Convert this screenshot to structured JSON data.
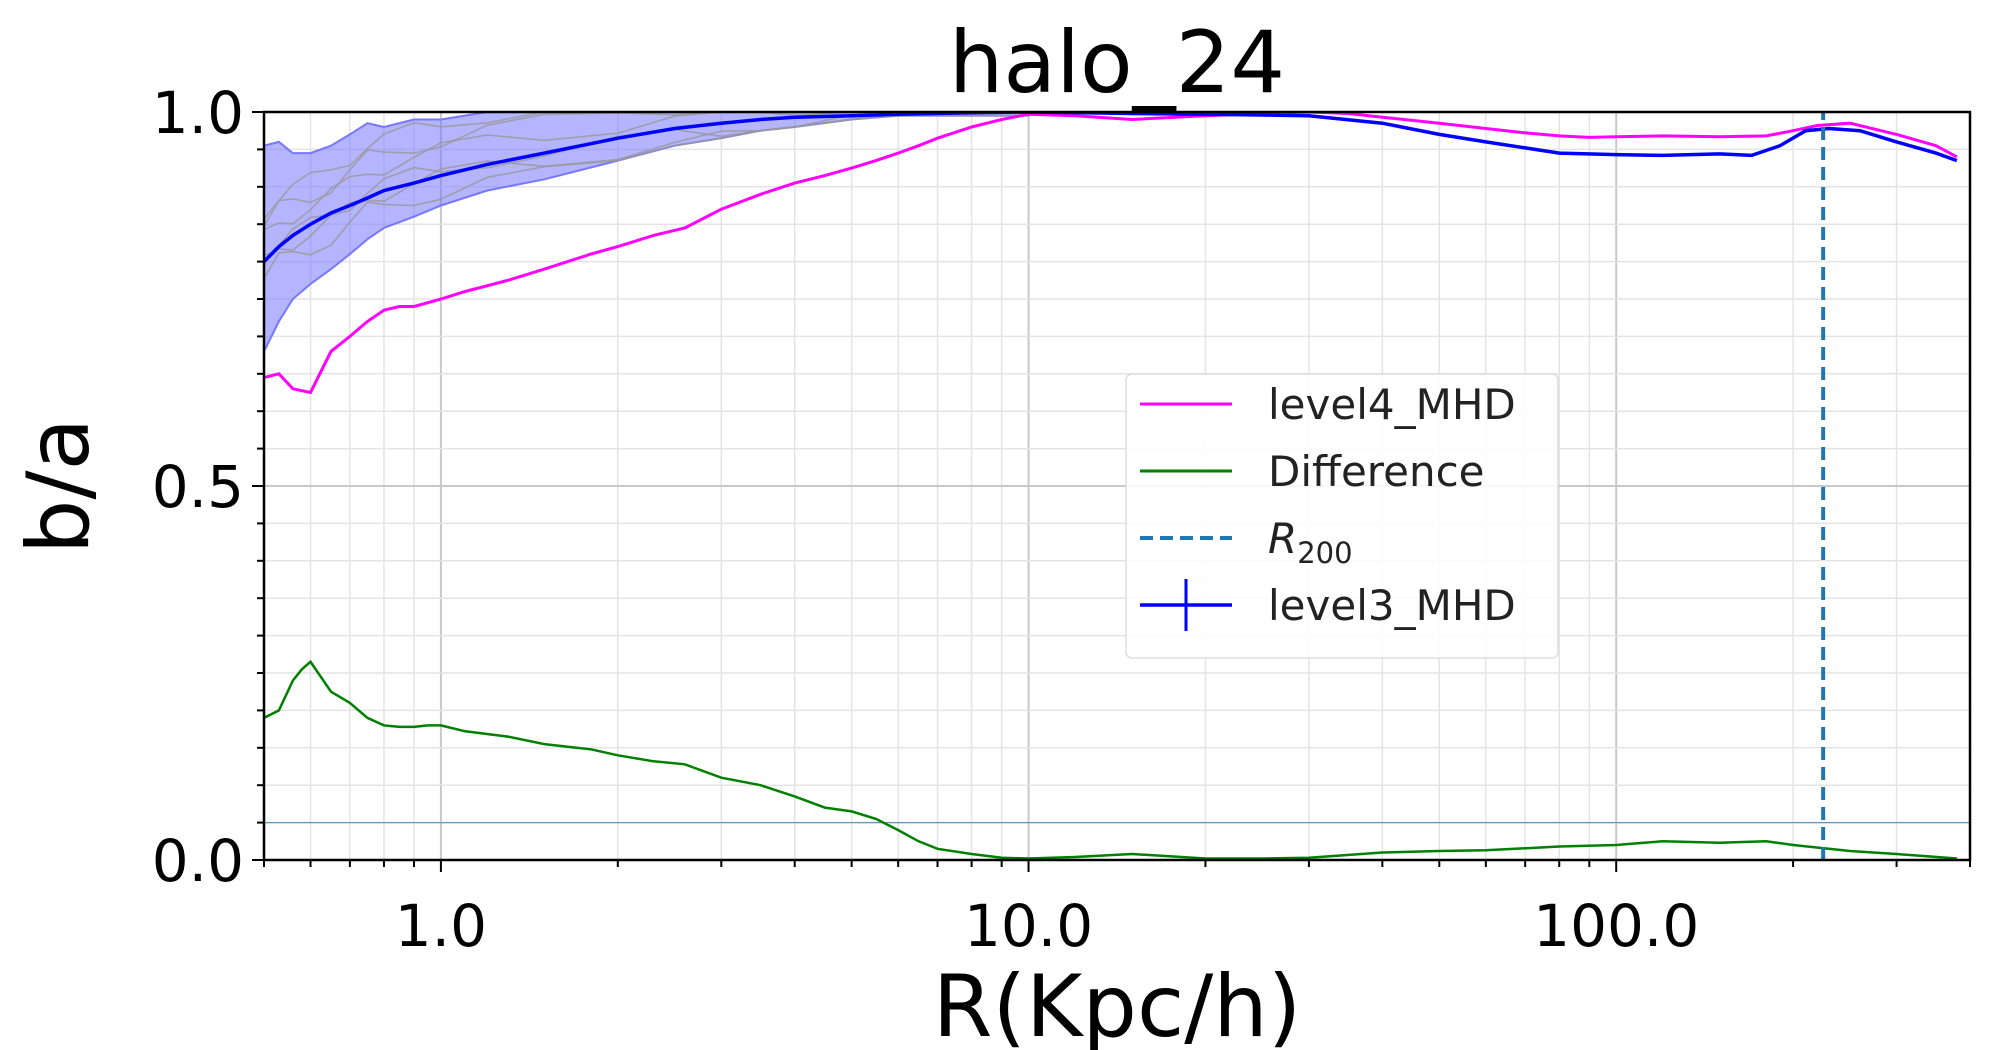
{
  "chart_data": {
    "type": "line",
    "title": "halo_24",
    "xlabel": "R(Kpc/h)",
    "ylabel": "b/a",
    "xscale": "log",
    "xlim": [
      0.5,
      400
    ],
    "ylim": [
      0.0,
      1.0
    ],
    "xticks": [
      1.0,
      10.0,
      100.0
    ],
    "xtick_labels": [
      "1.0",
      "10.0",
      "100.0"
    ],
    "yticks": [
      0.0,
      0.5,
      1.0
    ],
    "ytick_labels": [
      "0.0",
      "0.5",
      "1.0"
    ],
    "grid": true,
    "legend_position": "center-right",
    "reference_line_y": 0.05,
    "colors": {
      "level4": "#ff00ff",
      "difference": "#008000",
      "r200": "#1f77b4",
      "level3": "#0000ff",
      "band": "#7777ff",
      "thin": "#999999"
    },
    "series": [
      {
        "name": "level4_MHD",
        "x": [
          0.5,
          0.53,
          0.56,
          0.6,
          0.65,
          0.7,
          0.75,
          0.8,
          0.85,
          0.9,
          0.95,
          1.0,
          1.1,
          1.3,
          1.5,
          1.8,
          2.0,
          2.3,
          2.6,
          3.0,
          3.5,
          4.0,
          4.5,
          5.0,
          5.5,
          6.0,
          6.5,
          7.0,
          8.0,
          9.0,
          10.0,
          12.0,
          15.0,
          20.0,
          25.0,
          30.0,
          35.0,
          40.0,
          50.0,
          60.0,
          70.0,
          80.0,
          90.0,
          100.0,
          120.0,
          150.0,
          180.0,
          200.0,
          220.0,
          250.0,
          300.0,
          350.0,
          380.0
        ],
        "y": [
          0.645,
          0.65,
          0.63,
          0.625,
          0.68,
          0.7,
          0.72,
          0.735,
          0.74,
          0.74,
          0.745,
          0.75,
          0.76,
          0.775,
          0.79,
          0.81,
          0.82,
          0.835,
          0.845,
          0.87,
          0.89,
          0.905,
          0.915,
          0.925,
          0.935,
          0.945,
          0.955,
          0.965,
          0.98,
          0.99,
          0.997,
          0.995,
          0.99,
          0.995,
          0.998,
          1.0,
          0.998,
          0.993,
          0.985,
          0.978,
          0.972,
          0.968,
          0.966,
          0.967,
          0.968,
          0.967,
          0.968,
          0.975,
          0.982,
          0.985,
          0.97,
          0.955,
          0.94
        ]
      },
      {
        "name": "Difference",
        "x": [
          0.5,
          0.53,
          0.56,
          0.58,
          0.6,
          0.65,
          0.7,
          0.75,
          0.8,
          0.85,
          0.9,
          0.95,
          1.0,
          1.1,
          1.3,
          1.5,
          1.7,
          1.8,
          2.0,
          2.3,
          2.6,
          3.0,
          3.5,
          4.0,
          4.5,
          5.0,
          5.5,
          6.0,
          6.5,
          7.0,
          8.0,
          9.0,
          10.0,
          12.0,
          15.0,
          20.0,
          25.0,
          30.0,
          40.0,
          50.0,
          60.0,
          80.0,
          100.0,
          120.0,
          150.0,
          180.0,
          200.0,
          250.0,
          300.0,
          380.0
        ],
        "y": [
          0.19,
          0.2,
          0.24,
          0.255,
          0.265,
          0.225,
          0.21,
          0.19,
          0.18,
          0.178,
          0.178,
          0.18,
          0.18,
          0.172,
          0.165,
          0.155,
          0.15,
          0.148,
          0.14,
          0.132,
          0.128,
          0.11,
          0.1,
          0.085,
          0.07,
          0.065,
          0.055,
          0.04,
          0.025,
          0.015,
          0.008,
          0.003,
          0.002,
          0.004,
          0.008,
          0.002,
          0.002,
          0.003,
          0.01,
          0.012,
          0.013,
          0.018,
          0.02,
          0.025,
          0.023,
          0.025,
          0.02,
          0.012,
          0.008,
          0.002
        ]
      },
      {
        "name": "R_200",
        "x": [
          225.0,
          225.0
        ],
        "y": [
          0.0,
          1.0
        ]
      },
      {
        "name": "level3_MHD",
        "x": [
          0.5,
          0.53,
          0.56,
          0.6,
          0.65,
          0.7,
          0.75,
          0.8,
          0.9,
          1.0,
          1.2,
          1.5,
          2.0,
          2.5,
          3.0,
          3.5,
          4.0,
          5.0,
          6.0,
          8.0,
          10.0,
          15.0,
          20.0,
          30.0,
          40.0,
          50.0,
          60.0,
          70.0,
          80.0,
          100.0,
          120.0,
          150.0,
          170.0,
          190.0,
          210.0,
          230.0,
          260.0,
          300.0,
          350.0,
          380.0
        ],
        "y": [
          0.8,
          0.82,
          0.835,
          0.85,
          0.865,
          0.875,
          0.885,
          0.895,
          0.905,
          0.915,
          0.93,
          0.945,
          0.965,
          0.978,
          0.985,
          0.99,
          0.993,
          0.995,
          0.997,
          0.999,
          1.0,
          0.998,
          0.997,
          0.995,
          0.985,
          0.97,
          0.96,
          0.952,
          0.945,
          0.943,
          0.942,
          0.944,
          0.942,
          0.955,
          0.975,
          0.978,
          0.975,
          0.96,
          0.945,
          0.935
        ],
        "band_upper": [
          0.955,
          0.96,
          0.945,
          0.945,
          0.955,
          0.97,
          0.985,
          0.98,
          0.99,
          0.99,
          1.0,
          1.0,
          1.0,
          1.0,
          1.0,
          1.0,
          1.0,
          1.0,
          1.0,
          1.0,
          1.0
        ],
        "band_lower": [
          0.68,
          0.72,
          0.75,
          0.77,
          0.79,
          0.81,
          0.83,
          0.845,
          0.86,
          0.875,
          0.895,
          0.91,
          0.935,
          0.955,
          0.965,
          0.975,
          0.98,
          0.99,
          0.995,
          0.995,
          0.995
        ],
        "band_x": [
          0.5,
          0.53,
          0.56,
          0.6,
          0.65,
          0.7,
          0.75,
          0.8,
          0.9,
          1.0,
          1.2,
          1.5,
          2.0,
          2.5,
          3.0,
          3.5,
          4.0,
          5.0,
          6.0,
          8.0,
          10.0
        ]
      }
    ],
    "legend": [
      {
        "label": "level4_MHD",
        "color_key": "level4",
        "style": "line"
      },
      {
        "label": "Difference",
        "color_key": "difference",
        "style": "line"
      },
      {
        "label": "R",
        "sub": "200",
        "color_key": "r200",
        "style": "dashed"
      },
      {
        "label": "level3_MHD",
        "color_key": "level3",
        "style": "errorbar"
      }
    ]
  }
}
